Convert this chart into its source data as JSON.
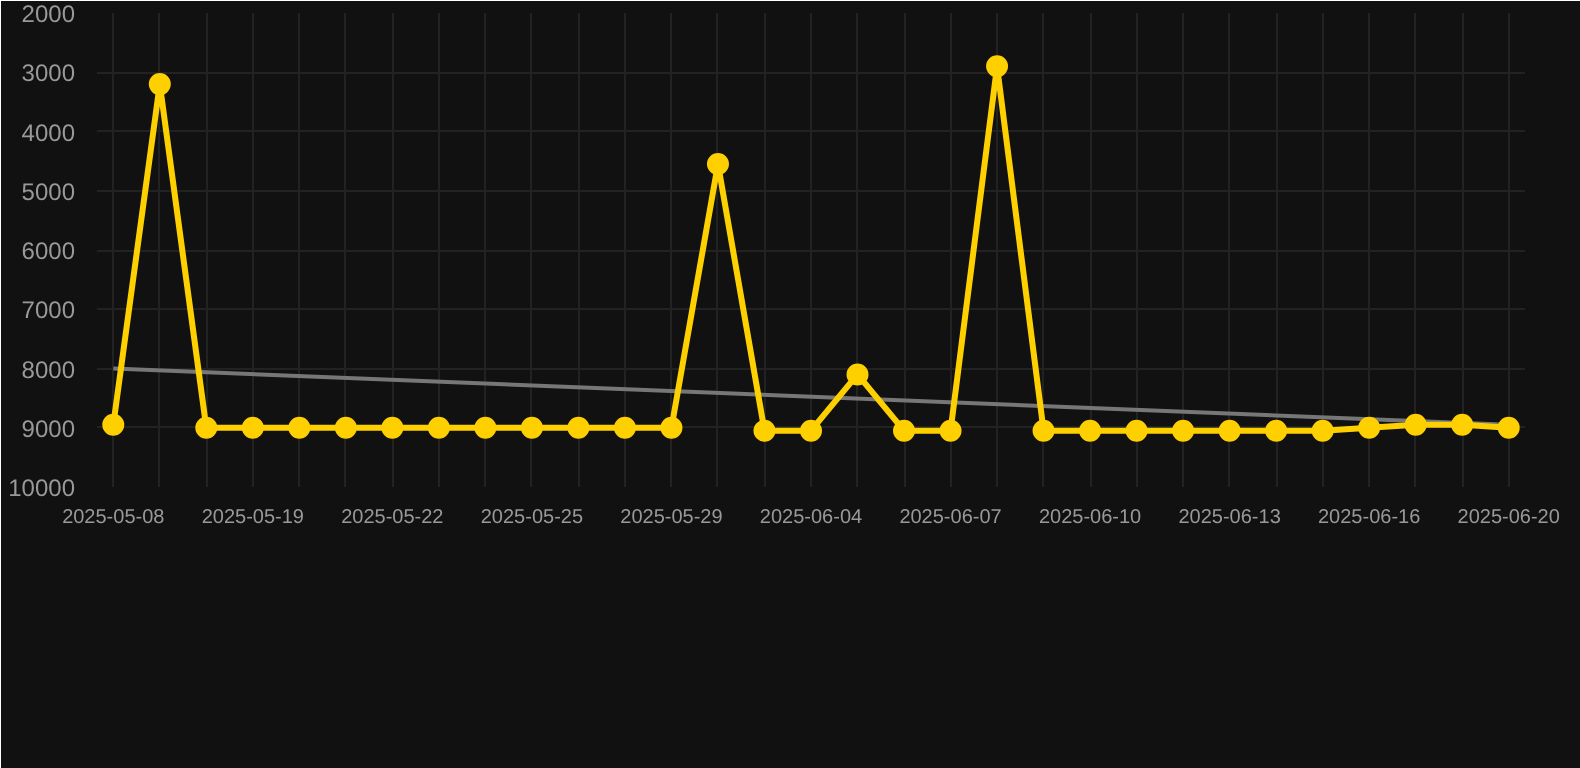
{
  "chart_data": {
    "type": "line",
    "categories": [
      "2025-05-08",
      null,
      null,
      "2025-05-19",
      null,
      null,
      "2025-05-22",
      null,
      null,
      "2025-05-25",
      null,
      null,
      "2025-05-29",
      null,
      null,
      "2025-06-04",
      null,
      null,
      "2025-06-07",
      null,
      null,
      "2025-06-10",
      null,
      null,
      "2025-06-13",
      null,
      null,
      "2025-06-16",
      null,
      null,
      "2025-06-20"
    ],
    "series": [
      {
        "color": "#ffd000",
        "marker": "circle",
        "values": [
          8950,
          3200,
          9000,
          9000,
          9000,
          9000,
          9000,
          9000,
          9000,
          9000,
          9000,
          9000,
          9000,
          4550,
          9050,
          9050,
          8100,
          9050,
          9050,
          2900,
          9050,
          9050,
          9050,
          9050,
          9050,
          9050,
          9050,
          9000,
          8950,
          8950,
          9000
        ]
      },
      {
        "type": "line",
        "color": "#777777",
        "marker": "none",
        "values": [
          8000,
          null,
          null,
          null,
          null,
          null,
          null,
          null,
          null,
          null,
          null,
          null,
          null,
          null,
          null,
          null,
          null,
          null,
          null,
          null,
          null,
          null,
          null,
          null,
          null,
          null,
          null,
          null,
          null,
          null,
          8950
        ]
      }
    ],
    "ylim": [
      10000,
      2000
    ],
    "yticks": [
      2000,
      3000,
      4000,
      5000,
      6000,
      7000,
      8000,
      9000,
      10000
    ],
    "grid": true
  }
}
